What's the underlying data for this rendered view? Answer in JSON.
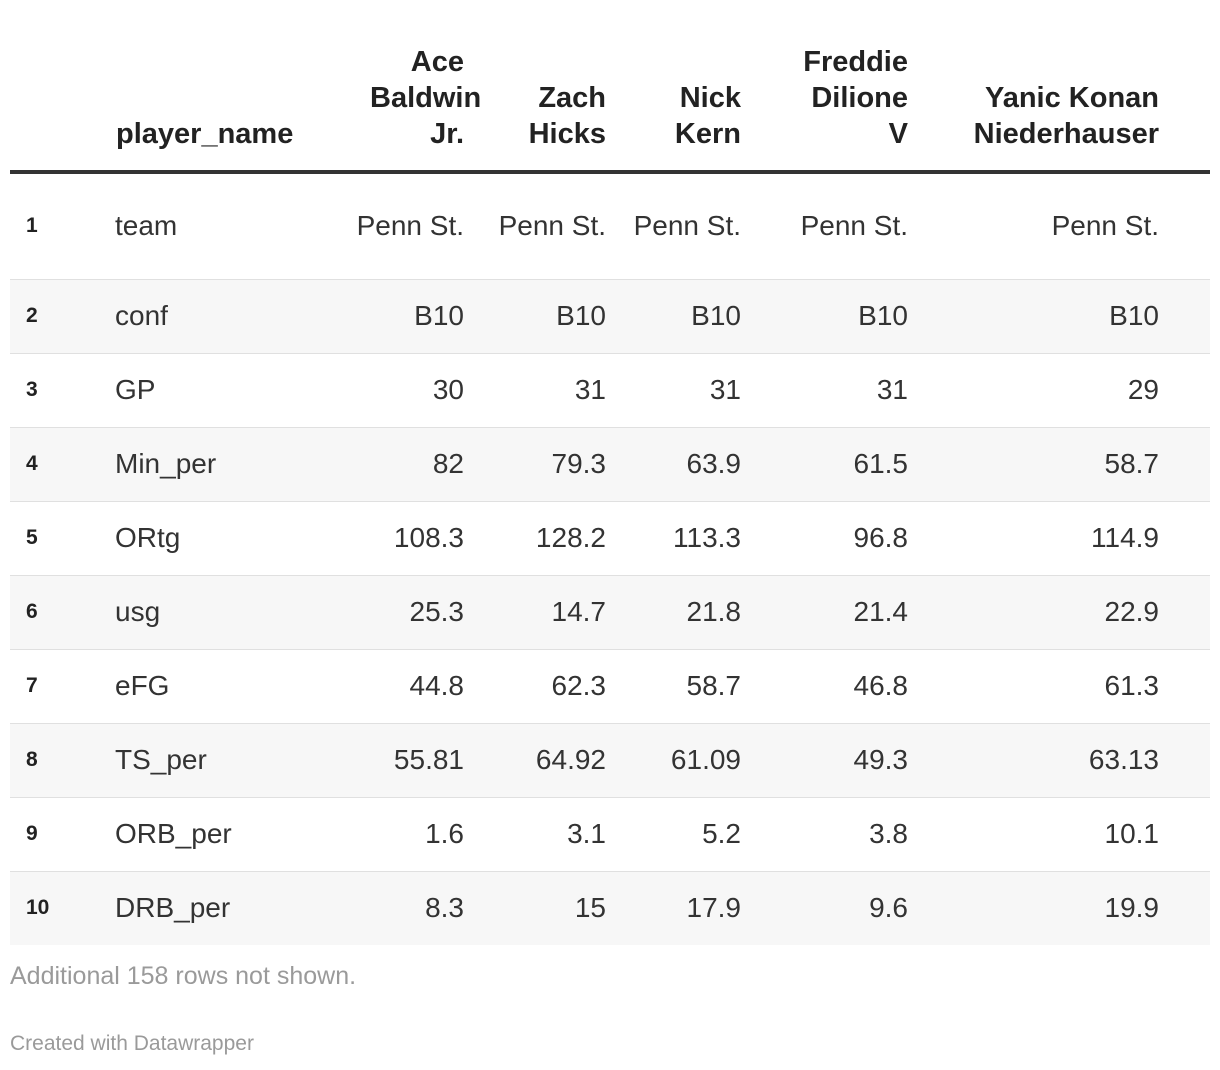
{
  "chart_data": {
    "type": "table",
    "columns": [
      "",
      "player_name",
      "Ace Baldwin Jr.",
      "Zach Hicks",
      "Nick Kern",
      "Freddie Dilione V",
      "Yanic Konan Niederhauser"
    ],
    "rows": [
      [
        "1",
        "team",
        "Penn St.",
        "Penn St.",
        "Penn St.",
        "Penn St.",
        "Penn St."
      ],
      [
        "2",
        "conf",
        "B10",
        "B10",
        "B10",
        "B10",
        "B10"
      ],
      [
        "3",
        "GP",
        "30",
        "31",
        "31",
        "31",
        "29"
      ],
      [
        "4",
        "Min_per",
        "82",
        "79.3",
        "63.9",
        "61.5",
        "58.7"
      ],
      [
        "5",
        "ORtg",
        "108.3",
        "128.2",
        "113.3",
        "96.8",
        "114.9"
      ],
      [
        "6",
        "usg",
        "25.3",
        "14.7",
        "21.8",
        "21.4",
        "22.9"
      ],
      [
        "7",
        "eFG",
        "44.8",
        "62.3",
        "58.7",
        "46.8",
        "61.3"
      ],
      [
        "8",
        "TS_per",
        "55.81",
        "64.92",
        "61.09",
        "49.3",
        "63.13"
      ],
      [
        "9",
        "ORB_per",
        "1.6",
        "3.1",
        "5.2",
        "3.8",
        "10.1"
      ],
      [
        "10",
        "DRB_per",
        "8.3",
        "15",
        "17.9",
        "9.6",
        "19.9"
      ]
    ]
  },
  "notes": "Additional 158 rows not shown.",
  "credit": "Created with Datawrapper",
  "colors": {
    "header_rule": "#333333",
    "row_alt": "#f7f7f7",
    "row_divider": "#e0e0e0",
    "footnote": "#9a9a9a"
  }
}
